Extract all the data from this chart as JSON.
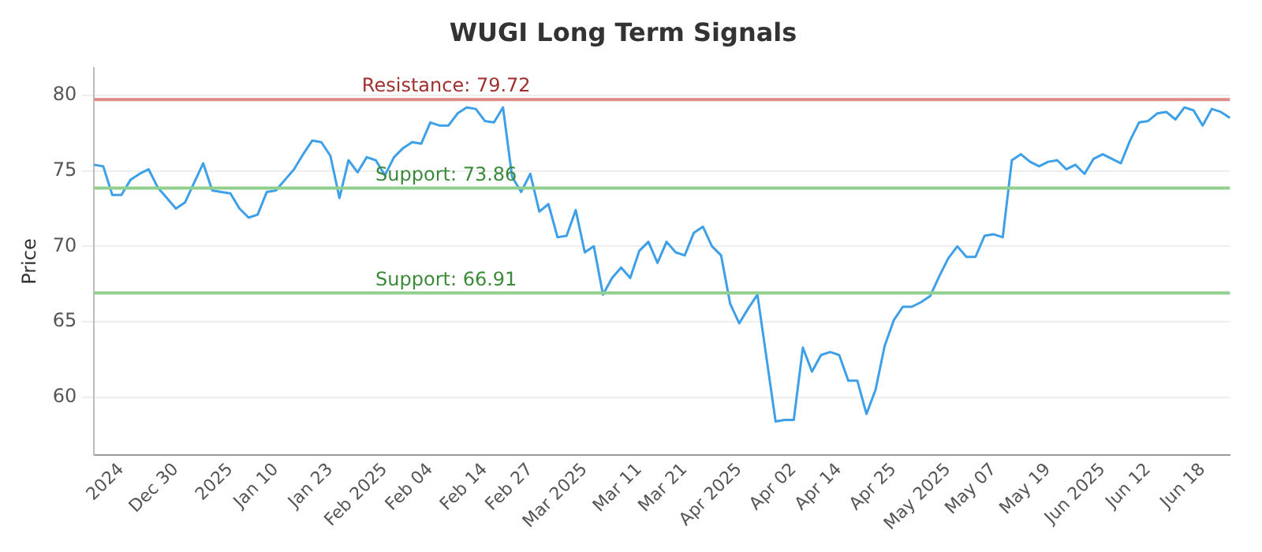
{
  "chart_data": {
    "type": "line",
    "title": "WUGI Long Term Signals",
    "ylabel": "Price",
    "categories": [
      null,
      null,
      null,
      "2024",
      null,
      null,
      null,
      null,
      null,
      "Dec 30",
      null,
      null,
      null,
      null,
      null,
      "2025",
      null,
      null,
      null,
      null,
      "Jan 10",
      null,
      null,
      null,
      null,
      null,
      "Jan 23",
      null,
      null,
      null,
      null,
      null,
      "Feb 2025",
      null,
      null,
      null,
      null,
      "Feb 04",
      null,
      null,
      null,
      null,
      null,
      "Feb 14",
      null,
      null,
      null,
      null,
      "Feb 27",
      null,
      null,
      null,
      null,
      null,
      "Mar 2025",
      null,
      null,
      null,
      null,
      null,
      "Mar 11",
      null,
      null,
      null,
      null,
      "Mar 21",
      null,
      null,
      null,
      null,
      null,
      "Apr 2025",
      null,
      null,
      null,
      null,
      null,
      "Apr 02",
      null,
      null,
      null,
      null,
      "Apr 14",
      null,
      null,
      null,
      null,
      null,
      "Apr 25",
      null,
      null,
      null,
      null,
      null,
      "May 2025",
      null,
      null,
      null,
      null,
      "May 07",
      null,
      null,
      null,
      null,
      null,
      "May 19",
      null,
      null,
      null,
      null,
      null,
      "Jun 2025",
      null,
      null,
      null,
      null,
      "Jun 12",
      null,
      null,
      null,
      null,
      null,
      "Jun 18",
      null,
      null,
      null
    ],
    "series": [
      {
        "color": "#3ea0e8",
        "values": [
          75.4,
          75.3,
          73.4,
          73.4,
          74.4,
          74.8,
          75.1,
          73.9,
          73.2,
          72.5,
          72.9,
          74.2,
          75.5,
          73.7,
          73.6,
          73.5,
          72.5,
          71.9,
          72.1,
          73.6,
          73.7,
          74.4,
          75.1,
          76.1,
          77,
          76.9,
          76,
          73.2,
          75.7,
          74.9,
          75.9,
          75.7,
          74.7,
          75.9,
          76.5,
          76.9,
          76.8,
          78.2,
          78,
          78,
          78.8,
          79.2,
          79.1,
          78.3,
          78.2,
          79.2,
          74.6,
          73.6,
          74.8,
          72.3,
          72.8,
          70.6,
          70.7,
          72.4,
          69.6,
          70,
          66.8,
          67.9,
          68.6,
          67.9,
          69.7,
          70.3,
          68.9,
          70.3,
          69.6,
          69.4,
          70.9,
          71.3,
          70,
          69.4,
          66.2,
          64.9,
          65.9,
          66.8,
          62.6,
          58.4,
          58.5,
          58.5,
          63.3,
          61.7,
          62.8,
          63,
          62.8,
          61.1,
          61.1,
          58.9,
          60.5,
          63.4,
          65.1,
          66,
          66,
          66.3,
          66.7,
          68,
          69.2,
          70,
          69.3,
          69.3,
          70.7,
          70.8,
          70.6,
          75.7,
          76.1,
          75.6,
          75.3,
          75.6,
          75.7,
          75.1,
          75.4,
          74.8,
          75.8,
          76.1,
          75.8,
          75.5,
          77,
          78.2,
          78.3,
          78.8,
          78.9,
          78.4,
          79.2,
          79,
          78,
          79.1,
          78.9,
          78.5
        ]
      }
    ],
    "ylim": [
      56.2,
      81.8
    ],
    "yticks": [
      60,
      65,
      70,
      75,
      80
    ],
    "grid": "y",
    "legend": false,
    "marker": "none",
    "line_style": "solid",
    "ref_lines": [
      {
        "axis": "y",
        "value": 79.72,
        "label": "Resistance: 79.72",
        "color": "#e08a8a"
      },
      {
        "axis": "y",
        "value": 73.86,
        "label": "Support: 73.86",
        "color": "#8fd08f"
      },
      {
        "axis": "y",
        "value": 66.91,
        "label": "Support: 66.91",
        "color": "#8fd08f"
      }
    ]
  }
}
